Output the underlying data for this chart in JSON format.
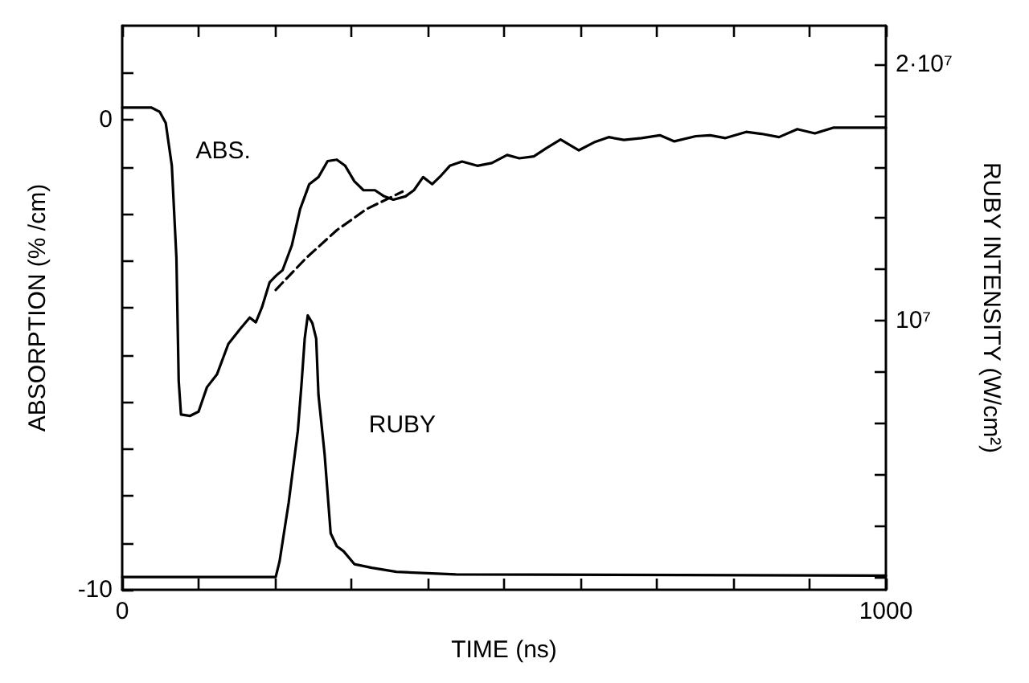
{
  "chart_data": {
    "type": "line",
    "xlabel": "TIME (ns)",
    "ylabel": "ABSORPTION (% /cm)",
    "y2label": "RUBY INTENSITY (W/cm²)",
    "xlim": [
      0,
      1000
    ],
    "ylim": [
      -10,
      2
    ],
    "y2lim": [
      -500000,
      21500000
    ],
    "xticks": [
      0,
      {
        "value": 100,
        "label": null
      },
      {
        "value": 200,
        "label": null
      },
      {
        "value": 300,
        "label": null
      },
      {
        "value": 400,
        "label": null
      },
      {
        "value": 500,
        "label": null
      },
      {
        "value": 600,
        "label": null
      },
      {
        "value": 700,
        "label": null
      },
      {
        "value": 800,
        "label": null
      },
      {
        "value": 900,
        "label": null
      },
      1000
    ],
    "yticks": [
      -10,
      {
        "value": -9,
        "label": null
      },
      {
        "value": -8,
        "label": null
      },
      {
        "value": -7,
        "label": null
      },
      {
        "value": -6,
        "label": null
      },
      {
        "value": -5,
        "label": null
      },
      {
        "value": -4,
        "label": null
      },
      {
        "value": -3,
        "label": null
      },
      {
        "value": -2,
        "label": null
      },
      {
        "value": -1,
        "label": null
      },
      0,
      {
        "value": 1,
        "label": null
      }
    ],
    "y2ticks": [
      {
        "value": 0,
        "label": null
      },
      {
        "value": 2000000,
        "label": null
      },
      {
        "value": 4000000,
        "label": null
      },
      {
        "value": 6000000,
        "label": null
      },
      {
        "value": 8000000,
        "label": null
      },
      {
        "value": 10000000,
        "label": "10⁷"
      },
      {
        "value": 12000000,
        "label": null
      },
      {
        "value": 14000000,
        "label": null
      },
      {
        "value": 16000000,
        "label": null
      },
      {
        "value": 18000000,
        "label": null
      },
      {
        "value": 20000000,
        "label": "2·10⁷"
      }
    ],
    "grid": false,
    "legend": false,
    "marker": "none",
    "series": [
      {
        "name": "ABS.",
        "color": "#000000",
        "line_style": "solid",
        "x": [
          0,
          38,
          49,
          57,
          65,
          71,
          74,
          77,
          89,
          100,
          111,
          124,
          139,
          155,
          167,
          175,
          183,
          193,
          202,
          210,
          222,
          233,
          245,
          257,
          269,
          281,
          292,
          304,
          316,
          331,
          343,
          355,
          371,
          382,
          394,
          406,
          418,
          429,
          445,
          465,
          484,
          504,
          520,
          539,
          555,
          574,
          598,
          618,
          637,
          657,
          680,
          704,
          723,
          751,
          770,
          790,
          817,
          837,
          860,
          884,
          907,
          931,
          1000
        ],
        "values": [
          0.26,
          0.26,
          0.17,
          -0.07,
          -0.98,
          -2.94,
          -5.56,
          -6.27,
          -6.3,
          -6.21,
          -5.69,
          -5.42,
          -4.77,
          -4.44,
          -4.21,
          -4.31,
          -3.99,
          -3.46,
          -3.31,
          -3.2,
          -2.68,
          -1.9,
          -1.37,
          -1.22,
          -0.88,
          -0.85,
          -0.98,
          -1.31,
          -1.5,
          -1.5,
          -1.63,
          -1.7,
          -1.63,
          -1.5,
          -1.22,
          -1.37,
          -1.18,
          -0.98,
          -0.89,
          -0.98,
          -0.92,
          -0.75,
          -0.82,
          -0.78,
          -0.61,
          -0.42,
          -0.65,
          -0.48,
          -0.37,
          -0.43,
          -0.39,
          -0.33,
          -0.46,
          -0.35,
          -0.33,
          -0.39,
          -0.26,
          -0.3,
          -0.37,
          -0.2,
          -0.29,
          -0.17,
          -0.17
        ]
      },
      {
        "color": "#000000",
        "line_style": "dashed",
        "x": [
          201,
          241,
          281,
          320,
          367
        ],
        "values": [
          -3.62,
          -2.94,
          -2.35,
          -1.9,
          -1.53
        ]
      },
      {
        "name": "RUBY",
        "color": "#000000",
        "line_style": "solid",
        "axis": "y2",
        "x": [
          0,
          201,
          206,
          218,
          230,
          235,
          239,
          243,
          249,
          254,
          257,
          265,
          273,
          281,
          290,
          304,
          327,
          359,
          437,
          1000
        ],
        "values": [
          0,
          0,
          600000,
          2900000,
          5700000,
          7600000,
          9300000,
          10200000,
          9900000,
          9300000,
          7100000,
          4800000,
          1700000,
          1200000,
          1000000,
          500000,
          360000,
          200000,
          100000,
          50000
        ]
      }
    ]
  }
}
